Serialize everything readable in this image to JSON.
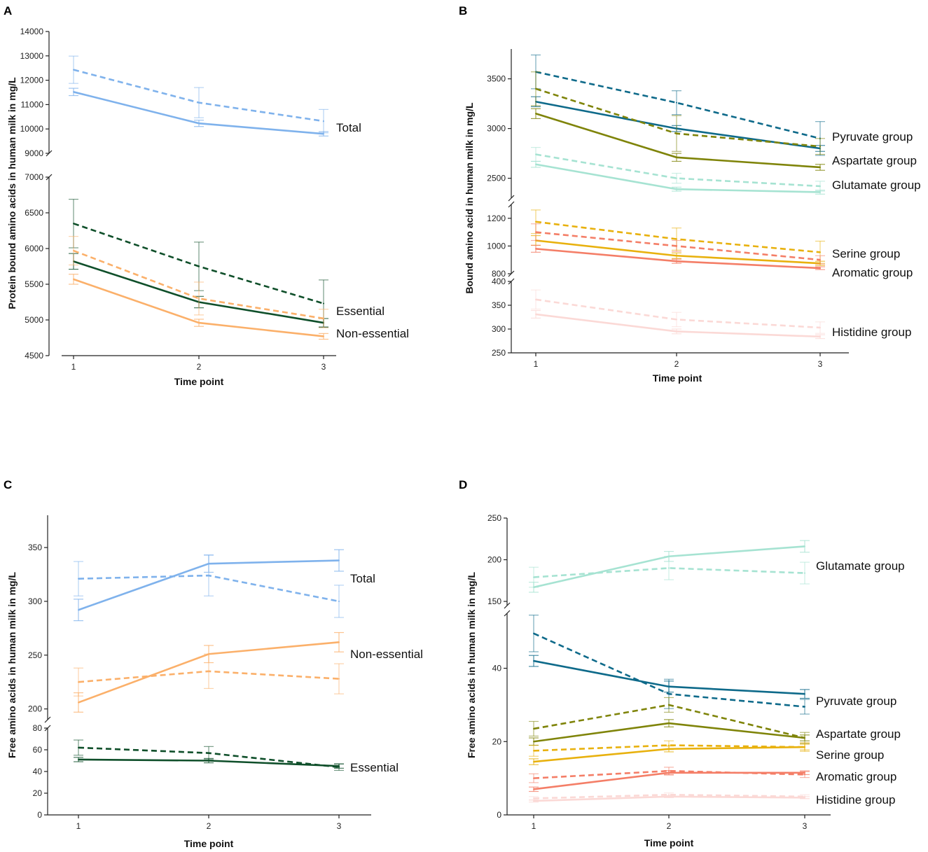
{
  "figure": {
    "panels": [
      {
        "letter": "A",
        "xlabel": "Time point",
        "ylabel": "Protein bound amino acids in human milk in mg/L"
      },
      {
        "letter": "B",
        "xlabel": "Time point",
        "ylabel": "Bound amino acid in human milk in mg/L"
      },
      {
        "letter": "C",
        "xlabel": "Time point",
        "ylabel": "Free amino acids in human milk in mg/L"
      },
      {
        "letter": "D",
        "xlabel": "Time point",
        "ylabel": "Free amino acids in human milk in mg/L"
      }
    ]
  },
  "chart_data": [
    {
      "panel": "A",
      "type": "line",
      "xlabel": "Time point",
      "ylabel": "Protein bound amino acids in human milk in mg/L",
      "x": [
        1,
        2,
        3
      ],
      "segments": [
        {
          "ylim": [
            9000,
            14000
          ],
          "ticks": [
            9000,
            10000,
            11000,
            12000,
            13000,
            14000
          ]
        },
        {
          "ylim": [
            4500,
            7000
          ],
          "ticks": [
            4500,
            5000,
            5500,
            6000,
            6500,
            7000
          ]
        }
      ],
      "series": [
        {
          "name": "Total",
          "style": "dashed",
          "color": "#7fb2ec",
          "segment": 0,
          "values": [
            12430,
            11080,
            10320
          ],
          "err": [
            560,
            620,
            480
          ]
        },
        {
          "name": "Total",
          "style": "solid",
          "color": "#7fb2ec",
          "segment": 0,
          "values": [
            11520,
            10230,
            9800
          ],
          "err": [
            150,
            130,
            90
          ],
          "label": "Total"
        },
        {
          "name": "Essential",
          "style": "dashed",
          "color": "#0f4f2a",
          "segment": 1,
          "values": [
            6350,
            5750,
            5230
          ],
          "err": [
            340,
            340,
            330
          ]
        },
        {
          "name": "Essential",
          "style": "solid",
          "color": "#0f4f2a",
          "segment": 1,
          "values": [
            5820,
            5250,
            4960
          ],
          "err": [
            110,
            80,
            60
          ],
          "label": "Essential"
        },
        {
          "name": "Non-essential",
          "style": "dashed",
          "color": "#fbb06a",
          "segment": 1,
          "values": [
            5970,
            5300,
            5020
          ],
          "err": [
            200,
            230,
            130
          ]
        },
        {
          "name": "Non-essential",
          "style": "solid",
          "color": "#fbb06a",
          "segment": 1,
          "values": [
            5570,
            4960,
            4770
          ],
          "err": [
            70,
            50,
            40
          ],
          "label": "Non-essential"
        }
      ]
    },
    {
      "panel": "B",
      "type": "line",
      "xlabel": "Time point",
      "ylabel": "Bound amino acid in human milk in mg/L",
      "x": [
        1,
        2,
        3
      ],
      "segments": [
        {
          "ylim": [
            2300,
            3800
          ],
          "ticks": [
            2500,
            3000,
            3500
          ]
        },
        {
          "ylim": [
            800,
            1300
          ],
          "ticks": [
            800,
            1000,
            1200
          ]
        },
        {
          "ylim": [
            250,
            400
          ],
          "ticks": [
            250,
            300,
            350,
            400
          ]
        }
      ],
      "series": [
        {
          "name": "Pyruvate group",
          "style": "dashed",
          "color": "#0e6a8a",
          "segment": 0,
          "values": [
            3570,
            3260,
            2900
          ],
          "err": [
            170,
            120,
            170
          ]
        },
        {
          "name": "Pyruvate group",
          "style": "solid",
          "color": "#0e6a8a",
          "segment": 0,
          "values": [
            3270,
            3000,
            2800
          ],
          "err": [
            50,
            30,
            30
          ],
          "label": "Pyruvate group"
        },
        {
          "name": "Aspartate group",
          "style": "dashed",
          "color": "#7f8409",
          "segment": 0,
          "values": [
            3400,
            2950,
            2820
          ],
          "err": [
            170,
            180,
            80
          ]
        },
        {
          "name": "Aspartate group",
          "style": "solid",
          "color": "#7f8409",
          "segment": 0,
          "values": [
            3150,
            2710,
            2610
          ],
          "err": [
            50,
            40,
            30
          ],
          "label": "Aspartate group"
        },
        {
          "name": "Glutamate group",
          "style": "dashed",
          "color": "#a6e3d2",
          "segment": 0,
          "values": [
            2740,
            2500,
            2420
          ],
          "err": [
            70,
            50,
            50
          ]
        },
        {
          "name": "Glutamate group",
          "style": "solid",
          "color": "#a6e3d2",
          "segment": 0,
          "values": [
            2640,
            2390,
            2360
          ],
          "err": [
            30,
            20,
            20
          ],
          "label": "Glutamate group"
        },
        {
          "name": "Serine group",
          "style": "dashed",
          "color": "#e8b10e",
          "segment": 1,
          "values": [
            1175,
            1050,
            955
          ],
          "err": [
            85,
            80,
            80
          ]
        },
        {
          "name": "Serine group",
          "style": "solid",
          "color": "#e8b10e",
          "segment": 1,
          "values": [
            1040,
            930,
            875
          ],
          "err": [
            35,
            20,
            15
          ],
          "label": "Serine group"
        },
        {
          "name": "Aromatic group",
          "style": "dashed",
          "color": "#f47e67",
          "segment": 1,
          "values": [
            1100,
            1000,
            900
          ],
          "err": [
            60,
            40,
            30
          ]
        },
        {
          "name": "Aromatic group",
          "style": "solid",
          "color": "#f47e67",
          "segment": 1,
          "values": [
            980,
            890,
            840
          ],
          "err": [
            25,
            15,
            10
          ],
          "label": "Aromatic group"
        },
        {
          "name": "Histidine group",
          "style": "dashed",
          "color": "#fbd9d6",
          "segment": 2,
          "values": [
            362,
            320,
            303
          ],
          "err": [
            20,
            15,
            12
          ]
        },
        {
          "name": "Histidine group",
          "style": "solid",
          "color": "#fbd9d6",
          "segment": 2,
          "values": [
            331,
            295,
            284
          ],
          "err": [
            8,
            5,
            4
          ],
          "label": "Histidine group"
        }
      ]
    },
    {
      "panel": "C",
      "type": "line",
      "xlabel": "Time point",
      "ylabel": "Free amino acids in human milk in mg/L",
      "x": [
        1,
        2,
        3
      ],
      "segments": [
        {
          "ylim": [
            190,
            380
          ],
          "ticks": [
            200,
            250,
            300,
            350
          ]
        },
        {
          "ylim": [
            0,
            80
          ],
          "ticks": [
            0,
            20,
            40,
            60,
            80
          ]
        }
      ],
      "series": [
        {
          "name": "Total",
          "style": "dashed",
          "color": "#7fb2ec",
          "segment": 0,
          "values": [
            321,
            324,
            300
          ],
          "err": [
            16,
            19,
            15
          ]
        },
        {
          "name": "Total",
          "style": "solid",
          "color": "#7fb2ec",
          "segment": 0,
          "values": [
            292,
            335,
            338
          ],
          "err": [
            10,
            8,
            10
          ],
          "label": "Total"
        },
        {
          "name": "Non-essential",
          "style": "dashed",
          "color": "#fbb06a",
          "segment": 0,
          "values": [
            225,
            235,
            228
          ],
          "err": [
            13,
            16,
            14
          ]
        },
        {
          "name": "Non-essential",
          "style": "solid",
          "color": "#fbb06a",
          "segment": 0,
          "values": [
            206,
            251,
            262
          ],
          "err": [
            9,
            8,
            9
          ],
          "label": "Non-essential"
        },
        {
          "name": "Essential",
          "style": "dashed",
          "color": "#0f4f2a",
          "segment": 1,
          "values": [
            62,
            57,
            44
          ],
          "err": [
            7,
            6,
            3
          ]
        },
        {
          "name": "Essential",
          "style": "solid",
          "color": "#0f4f2a",
          "segment": 1,
          "values": [
            51,
            50,
            45
          ],
          "err": [
            2,
            2,
            2
          ],
          "label": "Essential"
        }
      ]
    },
    {
      "panel": "D",
      "type": "line",
      "xlabel": "Time point",
      "ylabel": "Free amino acids in human milk in mg/L",
      "x": [
        1,
        2,
        3
      ],
      "segments": [
        {
          "ylim": [
            145,
            250
          ],
          "ticks": [
            150,
            200,
            250
          ]
        },
        {
          "ylim": [
            0,
            55
          ],
          "ticks": [
            0,
            20,
            40
          ]
        }
      ],
      "series": [
        {
          "name": "Glutamate group",
          "style": "dashed",
          "color": "#a6e3d2",
          "segment": 0,
          "values": [
            179,
            190,
            184
          ],
          "err": [
            12,
            14,
            13
          ]
        },
        {
          "name": "Glutamate group",
          "style": "solid",
          "color": "#a6e3d2",
          "segment": 0,
          "values": [
            167,
            204,
            216
          ],
          "err": [
            6,
            6,
            7
          ],
          "label": "Glutamate group"
        },
        {
          "name": "Pyruvate group",
          "style": "dashed",
          "color": "#0e6a8a",
          "segment": 1,
          "values": [
            49.5,
            33,
            29.5
          ],
          "err": [
            5,
            4,
            2
          ]
        },
        {
          "name": "Pyruvate group",
          "style": "solid",
          "color": "#0e6a8a",
          "segment": 1,
          "values": [
            42,
            35,
            33
          ],
          "err": [
            1.5,
            1.5,
            1.2
          ],
          "label": "Pyruvate group"
        },
        {
          "name": "Aspartate group",
          "style": "dashed",
          "color": "#7f8409",
          "segment": 1,
          "values": [
            23.5,
            30,
            21
          ],
          "err": [
            2,
            2,
            1.5
          ]
        },
        {
          "name": "Aspartate group",
          "style": "solid",
          "color": "#7f8409",
          "segment": 1,
          "values": [
            20,
            25,
            21
          ],
          "err": [
            1,
            1,
            0.8
          ],
          "label": "Aspartate group"
        },
        {
          "name": "Serine group",
          "style": "dashed",
          "color": "#e8b10e",
          "segment": 1,
          "values": [
            17.5,
            19,
            18.5
          ],
          "err": [
            1.5,
            1.2,
            1.2
          ]
        },
        {
          "name": "Serine group",
          "style": "solid",
          "color": "#e8b10e",
          "segment": 1,
          "values": [
            14.5,
            18,
            18.5
          ],
          "err": [
            0.8,
            0.8,
            0.8
          ],
          "label": "Serine group"
        },
        {
          "name": "Aromatic group",
          "style": "dashed",
          "color": "#f47e67",
          "segment": 1,
          "values": [
            10,
            12,
            11
          ],
          "err": [
            1.2,
            1,
            0.8
          ]
        },
        {
          "name": "Aromatic group",
          "style": "solid",
          "color": "#f47e67",
          "segment": 1,
          "values": [
            7,
            11.5,
            11.5
          ],
          "err": [
            0.6,
            0.6,
            0.5
          ],
          "label": "Aromatic group"
        },
        {
          "name": "Histidine group",
          "style": "dashed",
          "color": "#fbd9d6",
          "segment": 1,
          "values": [
            4.5,
            5.5,
            5
          ],
          "err": [
            0.5,
            0.5,
            0.5
          ]
        },
        {
          "name": "Histidine group",
          "style": "solid",
          "color": "#fbd9d6",
          "segment": 1,
          "values": [
            3.8,
            5,
            4.7
          ],
          "err": [
            0.3,
            0.3,
            0.3
          ],
          "label": "Histidine group"
        }
      ]
    }
  ]
}
